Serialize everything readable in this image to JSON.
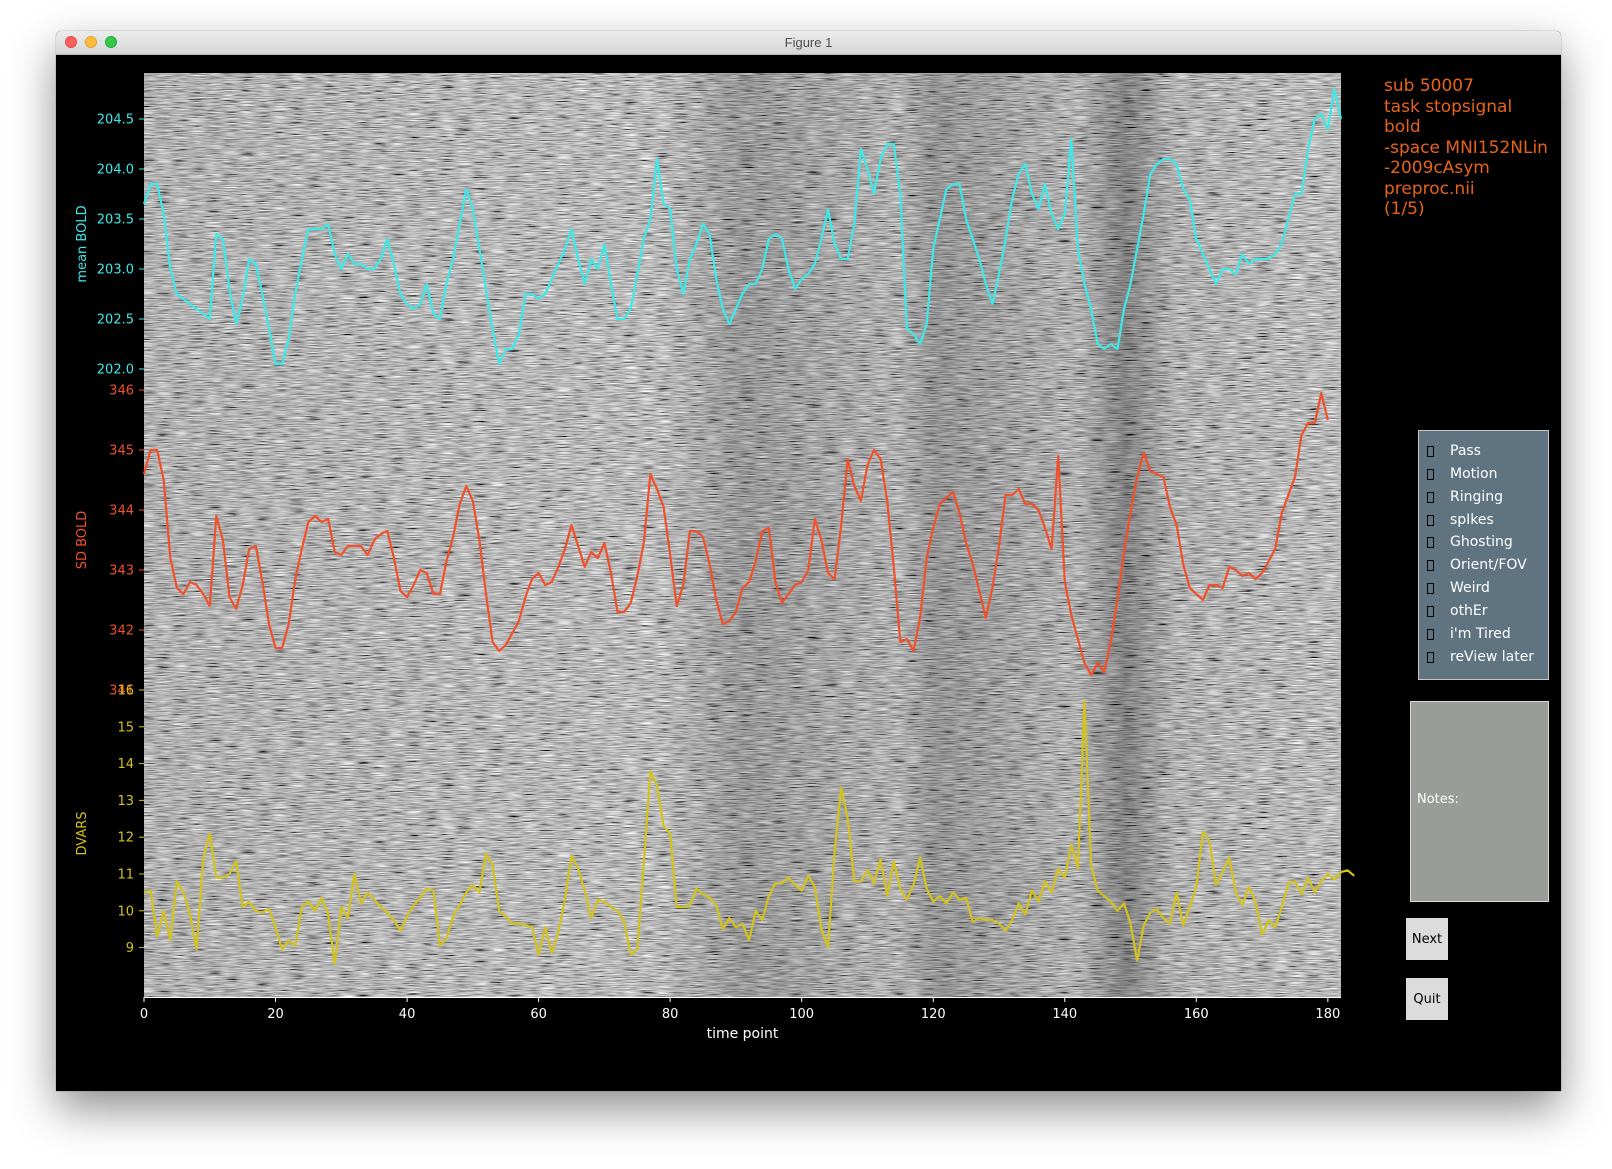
{
  "window": {
    "title": "Figure 1",
    "background": "#000000"
  },
  "info_text": "sub 50007\ntask stopsignal\nbold\n-space MNI152NLin\n-2009cAsym\npreproc.nii\n(1/5)",
  "checkboxes": [
    {
      "label": "Pass",
      "checked": false
    },
    {
      "label": "Motion",
      "checked": false
    },
    {
      "label": "Ringing",
      "checked": false
    },
    {
      "label": "spIkes",
      "checked": false
    },
    {
      "label": "Ghosting",
      "checked": false
    },
    {
      "label": "Orient/FOV",
      "checked": false
    },
    {
      "label": "Weird",
      "checked": false
    },
    {
      "label": "othEr",
      "checked": false
    },
    {
      "label": "i'm Tired",
      "checked": false
    },
    {
      "label": "reView later",
      "checked": false
    }
  ],
  "notes": {
    "label": "Notes:",
    "value": ""
  },
  "buttons": {
    "next": "Next",
    "quit": "Quit"
  },
  "colors": {
    "mean_bold": "#3de8e8",
    "sd_bold": "#f0512a",
    "dvars": "#d4c21c",
    "info": "#e8631a",
    "panel": "#5f7480",
    "notes_bg": "#9a9c98"
  },
  "chart_data": {
    "type": "line",
    "background": "grayscale carpet plot (voxel intensity over time)",
    "xlabel": "time point",
    "xlim": [
      0,
      182
    ],
    "xticks": [
      0,
      20,
      40,
      60,
      80,
      100,
      120,
      140,
      160,
      180
    ],
    "panels": [
      {
        "name": "mean BOLD",
        "ylabel": "mean BOLD",
        "ylim": [
          202.0,
          204.5
        ],
        "yticks": [
          "202.0",
          "202.5",
          "203.0",
          "203.5",
          "204.0",
          "204.5"
        ],
        "ytick_values": [
          202.0,
          202.5,
          203.0,
          203.5,
          204.0,
          204.5
        ],
        "values": [
          203.65,
          203.85,
          203.85,
          203.55,
          203.0,
          202.75,
          202.7,
          202.65,
          202.6,
          202.55,
          202.5,
          203.35,
          203.3,
          202.8,
          202.45,
          202.7,
          203.1,
          203.05,
          202.75,
          202.4,
          202.05,
          202.05,
          202.3,
          202.75,
          203.1,
          203.4,
          203.4,
          203.4,
          203.45,
          203.15,
          203.0,
          203.15,
          203.05,
          203.05,
          203.0,
          203.0,
          203.1,
          203.3,
          203.05,
          202.75,
          202.65,
          202.6,
          202.65,
          202.85,
          202.55,
          202.5,
          202.85,
          203.1,
          203.45,
          203.8,
          203.6,
          203.2,
          202.8,
          202.4,
          202.05,
          202.2,
          202.2,
          202.35,
          202.75,
          202.75,
          202.7,
          202.75,
          202.9,
          203.05,
          203.2,
          203.4,
          203.1,
          202.85,
          203.1,
          203.0,
          203.25,
          202.85,
          202.5,
          202.5,
          202.6,
          202.95,
          203.3,
          203.5,
          204.1,
          203.65,
          203.6,
          203.0,
          202.75,
          203.1,
          203.25,
          203.45,
          203.35,
          202.9,
          202.6,
          202.45,
          202.6,
          202.75,
          202.85,
          202.85,
          203.0,
          203.3,
          203.35,
          203.3,
          203.0,
          202.8,
          202.9,
          202.95,
          203.05,
          203.3,
          203.6,
          203.25,
          203.1,
          203.1,
          203.45,
          204.2,
          204.0,
          203.75,
          204.1,
          204.25,
          204.25,
          203.75,
          202.4,
          202.35,
          202.25,
          202.45,
          203.2,
          203.5,
          203.8,
          203.85,
          203.85,
          203.5,
          203.3,
          203.1,
          202.85,
          202.65,
          202.95,
          203.3,
          203.7,
          203.95,
          204.05,
          203.75,
          203.6,
          203.85,
          203.55,
          203.4,
          203.55,
          204.3,
          203.2,
          202.85,
          202.6,
          202.25,
          202.2,
          202.25,
          202.2,
          202.6,
          202.85,
          203.2,
          203.55,
          203.95,
          204.05,
          204.1,
          204.1,
          204.05,
          203.8,
          203.7,
          203.3,
          203.15,
          203.0,
          202.85,
          203.0,
          203.0,
          202.95,
          203.15,
          203.05,
          203.1,
          203.1,
          203.1,
          203.15,
          203.25,
          203.5,
          203.75,
          203.75,
          204.2,
          204.5,
          204.55,
          204.4,
          204.8,
          204.5
        ]
      },
      {
        "name": "SD BOLD",
        "ylabel": "SD BOLD",
        "ylim": [
          341,
          346
        ],
        "yticks": [
          "341",
          "342",
          "343",
          "344",
          "345",
          "346"
        ],
        "ytick_values": [
          341,
          342,
          343,
          344,
          345,
          346
        ],
        "values": [
          344.6,
          345.0,
          345.0,
          344.5,
          343.2,
          342.7,
          342.6,
          342.8,
          342.75,
          342.6,
          342.4,
          343.9,
          343.5,
          342.55,
          342.35,
          342.75,
          343.35,
          343.4,
          342.8,
          342.1,
          341.7,
          341.7,
          342.1,
          342.85,
          343.35,
          343.8,
          343.9,
          343.8,
          343.85,
          343.3,
          343.25,
          343.4,
          343.4,
          343.4,
          343.25,
          343.5,
          343.6,
          343.65,
          343.2,
          342.65,
          342.55,
          342.75,
          343.0,
          342.95,
          342.6,
          342.6,
          343.15,
          343.55,
          344.1,
          344.4,
          344.15,
          343.5,
          342.6,
          341.8,
          341.65,
          341.75,
          341.95,
          342.15,
          342.55,
          342.85,
          342.95,
          342.75,
          342.8,
          343.05,
          343.35,
          343.75,
          343.4,
          343.05,
          343.3,
          343.2,
          343.45,
          342.95,
          342.3,
          342.3,
          342.45,
          342.9,
          343.45,
          344.6,
          344.35,
          344.05,
          343.25,
          342.4,
          342.75,
          343.65,
          343.65,
          343.55,
          343.1,
          342.5,
          342.1,
          342.15,
          342.3,
          342.7,
          342.8,
          343.15,
          343.65,
          343.7,
          342.8,
          342.45,
          342.6,
          342.75,
          342.8,
          343.0,
          343.85,
          343.5,
          342.95,
          342.85,
          343.75,
          344.85,
          344.4,
          344.15,
          344.75,
          345.0,
          344.85,
          344.15,
          343.05,
          341.8,
          341.85,
          341.65,
          342.2,
          343.2,
          343.7,
          344.1,
          344.2,
          344.3,
          343.95,
          343.45,
          343.1,
          342.65,
          342.2,
          342.7,
          343.4,
          344.25,
          344.25,
          344.35,
          344.1,
          344.1,
          344.0,
          343.7,
          343.35,
          344.9,
          342.8,
          342.25,
          341.85,
          341.45,
          341.25,
          341.45,
          341.3,
          341.8,
          342.5,
          343.3,
          343.95,
          344.55,
          344.95,
          344.65,
          344.6,
          344.55,
          344.05,
          343.75,
          343.1,
          342.7,
          342.6,
          342.5,
          342.75,
          342.75,
          342.7,
          343.05,
          343.0,
          342.9,
          342.95,
          342.85,
          342.95,
          343.15,
          343.35,
          343.95,
          344.25,
          344.55,
          345.25,
          345.45,
          345.45,
          345.95,
          345.5
        ]
      },
      {
        "name": "DVARS",
        "ylabel": "DVARS",
        "ylim": [
          8.2,
          16
        ],
        "yticks": [
          "9",
          "10",
          "11",
          "12",
          "13",
          "14",
          "15",
          "16"
        ],
        "ytick_values": [
          9,
          10,
          11,
          12,
          13,
          14,
          15,
          16
        ],
        "values": [
          10.5,
          10.55,
          9.3,
          10.0,
          9.2,
          10.8,
          10.5,
          9.9,
          8.95,
          11.4,
          12.1,
          10.9,
          10.9,
          11.0,
          11.35,
          10.1,
          10.25,
          10.0,
          9.95,
          10.05,
          9.55,
          8.95,
          9.2,
          9.05,
          10.1,
          10.25,
          10.0,
          10.35,
          9.9,
          8.55,
          10.1,
          9.8,
          11.0,
          10.2,
          10.5,
          10.3,
          10.1,
          9.95,
          9.75,
          9.45,
          9.85,
          10.15,
          10.35,
          10.6,
          10.55,
          9.05,
          9.25,
          9.85,
          10.15,
          10.5,
          10.7,
          10.5,
          11.55,
          11.25,
          10.0,
          9.85,
          9.65,
          9.65,
          9.6,
          9.55,
          8.8,
          9.55,
          8.85,
          9.4,
          10.3,
          11.5,
          11.15,
          10.55,
          9.8,
          10.3,
          10.25,
          10.1,
          10.0,
          9.7,
          8.8,
          8.95,
          11.3,
          13.8,
          13.4,
          12.3,
          12.1,
          10.1,
          10.1,
          10.15,
          10.6,
          10.45,
          10.35,
          10.15,
          9.5,
          9.8,
          9.55,
          9.65,
          9.2,
          10.0,
          9.75,
          10.4,
          10.75,
          10.75,
          10.9,
          10.7,
          10.55,
          10.95,
          10.65,
          9.5,
          9.0,
          11.6,
          13.35,
          12.5,
          10.8,
          10.8,
          11.1,
          10.75,
          11.4,
          10.4,
          11.35,
          10.6,
          10.3,
          10.7,
          11.45,
          10.6,
          10.25,
          10.4,
          10.2,
          10.5,
          10.3,
          10.35,
          9.7,
          9.8,
          9.75,
          9.75,
          9.65,
          9.45,
          9.75,
          10.2,
          9.9,
          10.55,
          10.25,
          10.8,
          10.5,
          11.15,
          10.9,
          11.8,
          11.15,
          15.7,
          11.25,
          10.55,
          10.4,
          10.25,
          10.0,
          10.2,
          9.65,
          8.65,
          9.6,
          9.95,
          10.05,
          9.8,
          9.65,
          10.5,
          9.6,
          10.1,
          10.65,
          12.15,
          11.9,
          10.7,
          11.05,
          11.45,
          10.5,
          10.15,
          10.65,
          10.25,
          9.35,
          9.75,
          9.55,
          10.1,
          10.75,
          10.8,
          10.45,
          10.9,
          10.5,
          10.8,
          11.0,
          10.85,
          11.05,
          11.1,
          10.95
        ]
      }
    ]
  }
}
